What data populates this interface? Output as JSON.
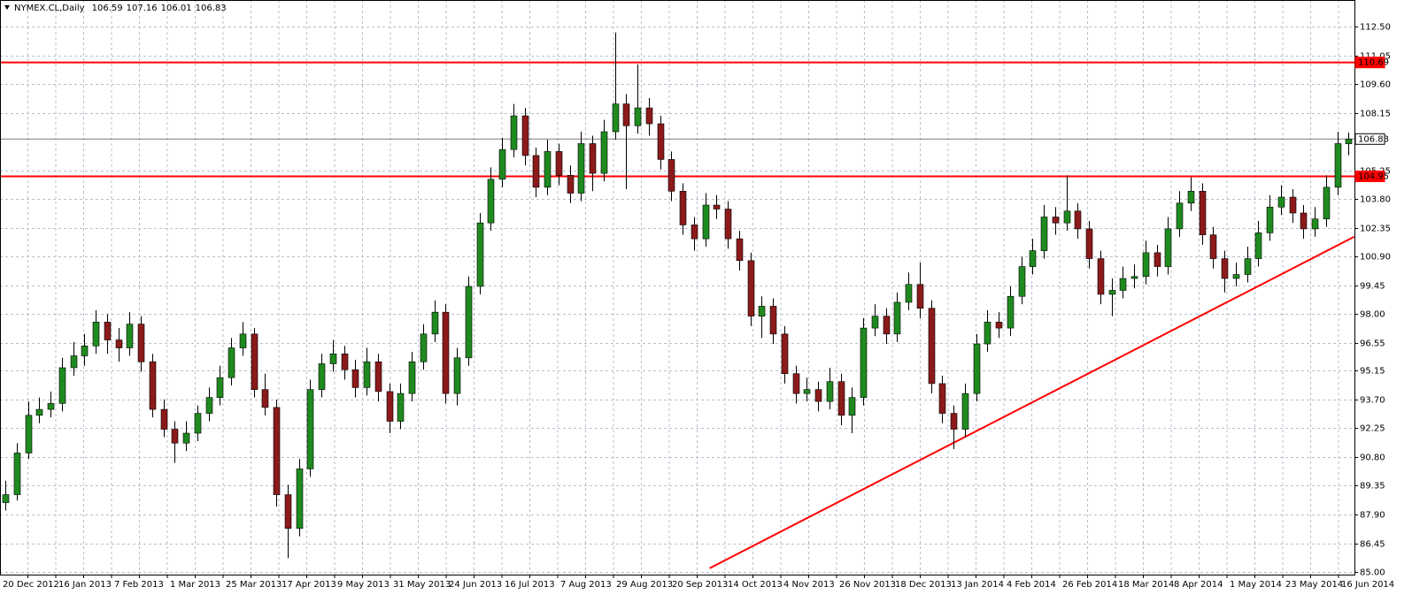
{
  "chart_data": {
    "type": "candlestick",
    "title": "NYMEX.CL,Daily",
    "up_color": "#1f8a1f",
    "down_color": "#8b1a1a",
    "grid": true,
    "ylim": [
      84.87,
      113.84
    ],
    "yticks": [
      {
        "value": 112.5,
        "label": "112.50"
      },
      111.05,
      {
        "value": 109.6,
        "label": "109.60"
      },
      108.15,
      105.25,
      {
        "value": 103.8,
        "label": "103.80"
      },
      102.35,
      {
        "value": 100.9,
        "label": "100.90"
      },
      99.45,
      {
        "value": 98,
        "label": "98.00"
      },
      96.55,
      95.15,
      {
        "value": 93.7,
        "label": "93.70"
      },
      92.25,
      {
        "value": 90.8,
        "label": "90.80"
      },
      89.35,
      {
        "value": 87.9,
        "label": "87.90"
      },
      86.45,
      {
        "value": 85,
        "label": "85.00"
      }
    ],
    "xtick_labels": [
      "20 Dec 2012",
      "16 Jan 2013",
      "7 Feb 2013",
      "1 Mar 2013",
      "25 Mar 2013",
      "17 Apr 2013",
      "9 May 2013",
      "31 May 2013",
      "24 Jun 2013",
      "16 Jul 2013",
      "7 Aug 2013",
      "29 Aug 2013",
      "20 Sep 2013",
      "14 Oct 2013",
      "4 Nov 2013",
      "26 Nov 2013",
      "18 Dec 2013",
      "13 Jan 2014",
      "4 Feb 2014",
      "26 Feb 2014",
      "18 Mar 2014",
      "8 Apr 2014",
      "1 May 2014",
      "23 May 2014",
      "16 Jun 2014"
    ],
    "hlines": {
      "values": [
        110.69,
        104.95
      ],
      "color": "#ff0000"
    },
    "trendline": {
      "x": [
        62.4,
        119.5
      ],
      "y": [
        85.19,
        101.9
      ],
      "color": "#ff0000"
    },
    "open": [
      88.5,
      88.9,
      91.0,
      92.9,
      93.2,
      93.5,
      95.3,
      95.9,
      96.4,
      97.6,
      96.7,
      96.3,
      97.5,
      95.6,
      93.2,
      92.2,
      91.5,
      92.0,
      93.0,
      93.8,
      94.8,
      96.3,
      97.0,
      94.2,
      93.3,
      88.9,
      87.2,
      90.2,
      94.2,
      95.5,
      96.0,
      95.2,
      94.3,
      95.6,
      94.1,
      92.6,
      94.0,
      95.6,
      97.0,
      98.1,
      94.0,
      95.8,
      99.4,
      102.6,
      104.8,
      106.3,
      108.0,
      106.0,
      104.4,
      106.2,
      105.0,
      104.1,
      106.6,
      105.1,
      107.2,
      108.6,
      107.5,
      108.4,
      107.6,
      105.8,
      104.2,
      102.5,
      101.8,
      103.5,
      103.3,
      101.8,
      100.7,
      97.9,
      98.4,
      97.0,
      95.0,
      94.0,
      94.2,
      93.6,
      94.6,
      92.9,
      93.8,
      97.3,
      97.9,
      97.0,
      98.6,
      99.5,
      98.3,
      94.5,
      93.0,
      92.2,
      94.0,
      96.5,
      97.6,
      97.3,
      98.9,
      100.4,
      101.2,
      102.9,
      102.6,
      103.2,
      102.3,
      100.8,
      99.0,
      99.2,
      99.8,
      99.9,
      101.1,
      100.4,
      102.3,
      103.6,
      104.2,
      102.0,
      100.8,
      99.8,
      100.0,
      100.8,
      102.1,
      103.4,
      103.9,
      103.1,
      102.3,
      102.8,
      104.4,
      106.59
    ],
    "high": [
      89.6,
      91.5,
      93.6,
      93.8,
      94.1,
      95.8,
      96.6,
      97.0,
      98.2,
      98.0,
      97.3,
      98.1,
      97.9,
      96.0,
      93.7,
      92.6,
      92.6,
      93.4,
      94.3,
      95.4,
      96.8,
      97.6,
      97.3,
      95.0,
      93.7,
      89.4,
      90.7,
      94.7,
      96.0,
      96.7,
      96.4,
      95.7,
      96.3,
      96.0,
      94.5,
      94.5,
      96.1,
      97.5,
      98.7,
      98.5,
      96.3,
      99.9,
      103.1,
      105.4,
      106.9,
      108.6,
      108.4,
      106.4,
      106.8,
      106.6,
      105.5,
      107.2,
      107.0,
      107.8,
      112.2,
      109.1,
      110.6,
      108.9,
      108.0,
      106.2,
      104.6,
      102.9,
      104.1,
      104.0,
      103.7,
      102.2,
      101.1,
      98.9,
      98.8,
      97.4,
      95.4,
      94.8,
      94.6,
      95.3,
      95.0,
      94.3,
      97.8,
      98.5,
      98.3,
      99.1,
      100.1,
      100.6,
      98.7,
      94.9,
      93.4,
      94.5,
      97.0,
      98.2,
      98.1,
      99.4,
      100.9,
      101.8,
      103.5,
      103.4,
      105.0,
      103.6,
      102.7,
      101.2,
      99.8,
      100.4,
      100.5,
      101.7,
      101.5,
      102.9,
      104.2,
      104.9,
      104.6,
      102.4,
      101.2,
      100.6,
      101.4,
      102.7,
      104.0,
      104.5,
      104.3,
      103.5,
      103.4,
      105.0,
      107.2,
      107.16
    ],
    "low": [
      88.1,
      88.6,
      90.7,
      92.5,
      92.8,
      93.1,
      94.9,
      95.4,
      96.0,
      96.0,
      95.6,
      95.9,
      95.1,
      92.8,
      91.8,
      90.5,
      91.1,
      91.6,
      92.6,
      93.4,
      94.4,
      95.9,
      93.8,
      92.9,
      88.3,
      85.7,
      86.8,
      89.8,
      93.8,
      95.1,
      94.7,
      93.8,
      93.9,
      93.6,
      92.0,
      92.2,
      93.6,
      95.2,
      96.6,
      93.5,
      93.4,
      95.4,
      99.0,
      102.2,
      104.4,
      105.9,
      105.5,
      103.9,
      104.0,
      104.5,
      103.6,
      103.7,
      104.2,
      104.7,
      106.8,
      104.3,
      107.1,
      107.0,
      105.3,
      103.7,
      102.0,
      101.2,
      101.4,
      102.8,
      101.3,
      100.2,
      97.4,
      96.8,
      96.5,
      94.5,
      93.5,
      93.6,
      93.1,
      93.2,
      92.4,
      92.0,
      93.4,
      96.9,
      96.5,
      96.6,
      98.2,
      97.8,
      94.0,
      92.5,
      91.2,
      91.8,
      93.6,
      96.1,
      96.8,
      96.9,
      98.5,
      100.0,
      100.8,
      102.0,
      102.2,
      101.8,
      100.3,
      98.5,
      97.9,
      98.8,
      99.3,
      99.5,
      99.9,
      100.0,
      101.9,
      103.2,
      101.5,
      100.3,
      99.1,
      99.4,
      99.6,
      100.4,
      101.7,
      103.0,
      102.6,
      101.8,
      101.9,
      102.4,
      104.0,
      106.01
    ],
    "close": [
      88.9,
      91.0,
      92.9,
      93.2,
      93.5,
      95.3,
      95.9,
      96.4,
      97.6,
      96.7,
      96.3,
      97.5,
      95.6,
      93.2,
      92.2,
      91.5,
      92.0,
      93.0,
      93.8,
      94.8,
      96.3,
      97.0,
      94.2,
      93.3,
      88.9,
      87.2,
      90.2,
      94.2,
      95.5,
      96.0,
      95.2,
      94.3,
      95.6,
      94.1,
      92.6,
      94.0,
      95.6,
      97.0,
      98.1,
      94.0,
      95.8,
      99.4,
      102.6,
      104.8,
      106.3,
      108.0,
      106.0,
      104.4,
      106.2,
      105.0,
      104.1,
      106.6,
      105.1,
      107.2,
      108.6,
      107.5,
      108.4,
      107.6,
      105.8,
      104.2,
      102.5,
      101.8,
      103.5,
      103.3,
      101.8,
      100.7,
      97.9,
      98.4,
      97.0,
      95.0,
      94.0,
      94.2,
      93.6,
      94.6,
      92.9,
      93.8,
      97.3,
      97.9,
      97.0,
      98.6,
      99.5,
      98.3,
      94.5,
      93.0,
      92.2,
      94.0,
      96.5,
      97.6,
      97.3,
      98.9,
      100.4,
      101.2,
      102.9,
      102.6,
      103.2,
      102.3,
      100.8,
      99.0,
      99.2,
      99.8,
      99.9,
      101.1,
      100.4,
      102.3,
      103.6,
      104.2,
      102.0,
      100.8,
      99.8,
      100.0,
      100.8,
      102.1,
      103.4,
      103.9,
      103.1,
      102.3,
      102.8,
      104.4,
      106.6,
      106.83
    ]
  }
}
